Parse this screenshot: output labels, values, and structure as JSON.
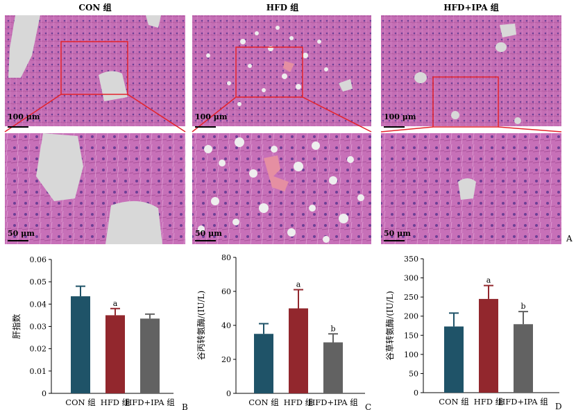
{
  "histology": {
    "columns": [
      {
        "title": "CON 组",
        "scale_top": "100 μm",
        "scale_bottom": "50 μm"
      },
      {
        "title": "HFD 组",
        "scale_top": "100 μm",
        "scale_bottom": "50 μm"
      },
      {
        "title": "HFD+IPA 组",
        "scale_top": "100 μm",
        "scale_bottom": "50 μm"
      }
    ],
    "panel_letter": "A",
    "colors": {
      "tissue": "#c56fb5",
      "tissue_dark": "#a9519a",
      "nuclei": "#6d3f95",
      "vessel": "#d8d8d8",
      "highlight_box": "#e4222a"
    }
  },
  "chart_data": [
    {
      "type": "bar",
      "panel_letter": "B",
      "categories": [
        "CON 组",
        "HFD 组",
        "HFD+IPA 组"
      ],
      "values": [
        0.0435,
        0.035,
        0.0335
      ],
      "errors": [
        0.0045,
        0.003,
        0.002
      ],
      "annotations": [
        "",
        "a",
        ""
      ],
      "colors": [
        "#1f5368",
        "#92272d",
        "#626262"
      ],
      "ylabel": "肝指数",
      "ylim": [
        0,
        0.06
      ],
      "yticks": [
        "0",
        "0.01",
        "0.02",
        "0.03",
        "0.04",
        "0.05",
        "0.06"
      ]
    },
    {
      "type": "bar",
      "panel_letter": "C",
      "categories": [
        "CON 组",
        "HFD 组",
        "HFD+IPA 组"
      ],
      "values": [
        35,
        50,
        30
      ],
      "errors": [
        6,
        11,
        5
      ],
      "annotations": [
        "",
        "a",
        "b"
      ],
      "colors": [
        "#1f5368",
        "#92272d",
        "#626262"
      ],
      "ylabel": "谷丙转氨酶/(IU/L)",
      "ylim": [
        0,
        80
      ],
      "yticks": [
        "0",
        "20",
        "40",
        "60",
        "80"
      ]
    },
    {
      "type": "bar",
      "panel_letter": "D",
      "categories": [
        "CON 组",
        "HFD 组",
        "HFD+IPA 组"
      ],
      "values": [
        173,
        245,
        179
      ],
      "errors": [
        35,
        35,
        33
      ],
      "annotations": [
        "",
        "a",
        "b"
      ],
      "colors": [
        "#1f5368",
        "#92272d",
        "#626262"
      ],
      "ylabel": "谷草转氨酶/(IU/L)",
      "ylim": [
        0,
        350
      ],
      "yticks": [
        "0",
        "50",
        "100",
        "150",
        "200",
        "250",
        "300",
        "350"
      ]
    }
  ]
}
